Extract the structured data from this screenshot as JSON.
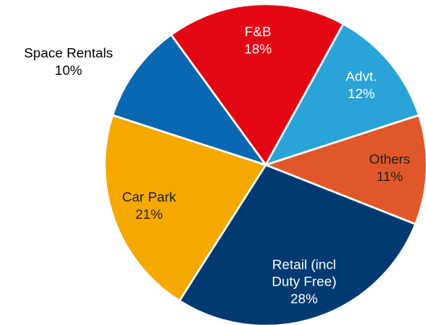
{
  "chart_data": {
    "type": "pie",
    "categories": [
      "F&B",
      "Advt.",
      "Others",
      "Retail (incl Duty Free)",
      "Car Park",
      "Space Rentals"
    ],
    "values": [
      18,
      12,
      11,
      28,
      21,
      10
    ],
    "value_labels": [
      "18%",
      "12%",
      "11%",
      "28%",
      "21%",
      "10%"
    ],
    "colors": [
      "#e30613",
      "#29a3d8",
      "#e0582a",
      "#003a70",
      "#f5a800",
      "#0a67b2"
    ]
  }
}
